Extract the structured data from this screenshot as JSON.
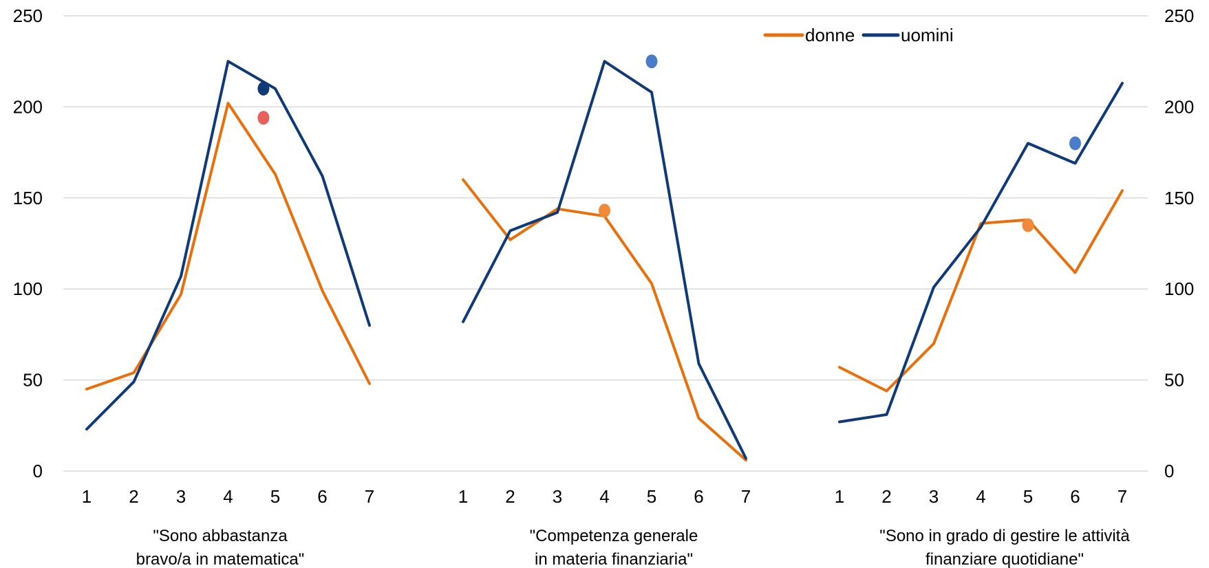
{
  "chart_data": {
    "type": "line",
    "ylim": [
      0,
      250
    ],
    "y_ticks": [
      0,
      50,
      100,
      150,
      200,
      250
    ],
    "x_categories": [
      "1",
      "2",
      "3",
      "4",
      "5",
      "6",
      "7"
    ],
    "grid": true,
    "legend_position": "top-right",
    "dual_axis_labels": true,
    "colors": {
      "donne": "#e8700c",
      "uomini": "#0f3a78",
      "marker_donne_g1": "#e8605a",
      "marker_uomini_g1": "#0f3a78",
      "marker_donne": "#ee8a3a",
      "marker_uomini": "#4a7cc9"
    },
    "legend": [
      {
        "key": "donne",
        "label": "donne"
      },
      {
        "key": "uomini",
        "label": "uomini"
      }
    ],
    "groups": [
      {
        "label_lines": [
          "\"Sono abbastanza",
          "bravo/a in matematica\""
        ],
        "series": {
          "donne": [
            45,
            54,
            97,
            202,
            163,
            99,
            48
          ],
          "uomini": [
            23,
            49,
            107,
            225,
            210,
            162,
            80
          ]
        },
        "markers": [
          {
            "series": "uomini",
            "x": 3.75,
            "y": 210,
            "color_key": "marker_uomini_g1"
          },
          {
            "series": "donne",
            "x": 3.75,
            "y": 194,
            "color_key": "marker_donne_g1"
          }
        ]
      },
      {
        "label_lines": [
          "\"Competenza generale",
          "in materia finanziaria\""
        ],
        "series": {
          "donne": [
            160,
            127,
            144,
            140,
            103,
            29,
            6
          ],
          "uomini": [
            82,
            132,
            142,
            225,
            208,
            59,
            7
          ]
        },
        "markers": [
          {
            "series": "uomini",
            "x": 4,
            "y": 225,
            "color_key": "marker_uomini"
          },
          {
            "series": "donne",
            "x": 3,
            "y": 143,
            "color_key": "marker_donne"
          }
        ]
      },
      {
        "label_lines": [
          "\"Sono in grado di gestire le attività",
          "finanziare quotidiane\""
        ],
        "series": {
          "donne": [
            57,
            44,
            70,
            136,
            138,
            109,
            154
          ],
          "uomini": [
            27,
            31,
            101,
            134,
            180,
            169,
            213
          ]
        },
        "markers": [
          {
            "series": "uomini",
            "x": 5,
            "y": 180,
            "color_key": "marker_uomini"
          },
          {
            "series": "donne",
            "x": 4,
            "y": 135,
            "color_key": "marker_donne"
          }
        ]
      }
    ]
  }
}
